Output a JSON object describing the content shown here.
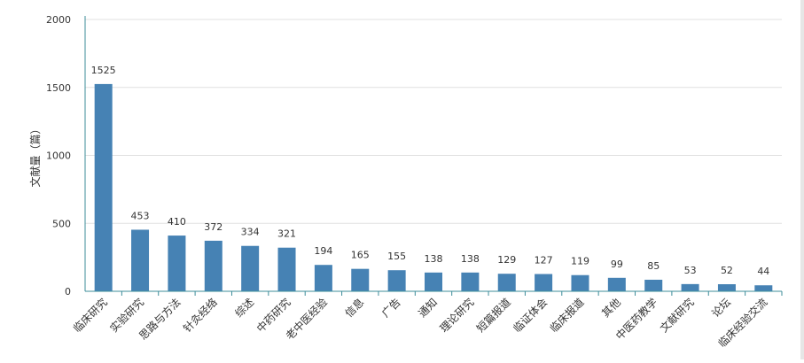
{
  "chart_data": {
    "type": "bar",
    "title": "",
    "xlabel": "",
    "ylabel": "文献量（篇）",
    "ylim": [
      0,
      2000
    ],
    "yticks": [
      0,
      500,
      1000,
      1500,
      2000
    ],
    "grid": true,
    "legend": "none",
    "categories": [
      "临床研究",
      "实验研究",
      "思路与方法",
      "针灸经络",
      "综述",
      "中药研究",
      "老中医经验",
      "信息",
      "广告",
      "通知",
      "理论研究",
      "短篇报道",
      "临证体会",
      "临床报道",
      "其他",
      "中医药教学",
      "文献研究",
      "论坛",
      "临床经验交流"
    ],
    "series": [
      {
        "values": [
          1525,
          453,
          410,
          372,
          334,
          321,
          194,
          165,
          155,
          138,
          138,
          129,
          127,
          119,
          99,
          85,
          53,
          52,
          44
        ]
      }
    ],
    "colors": {
      "bar": "#4682b4",
      "axis": "#3c8d9a",
      "grid": "#e0e0e0",
      "text": "#333333"
    }
  }
}
